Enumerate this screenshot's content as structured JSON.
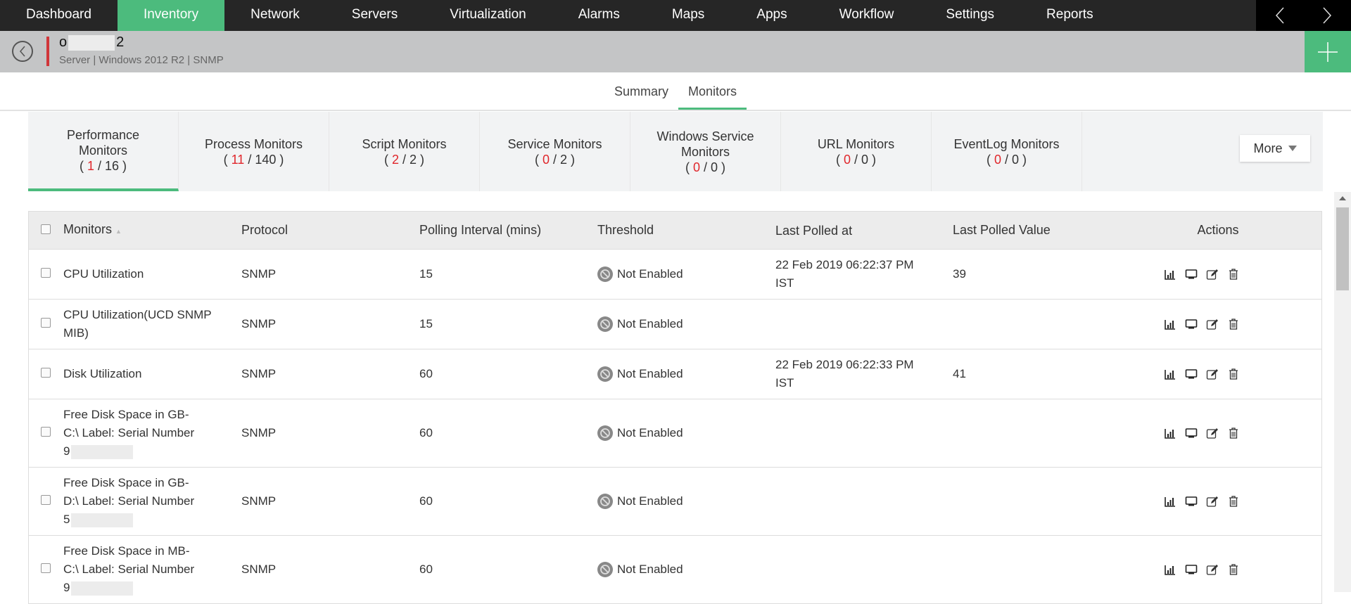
{
  "nav": {
    "items": [
      "Dashboard",
      "Inventory",
      "Network",
      "Servers",
      "Virtualization",
      "Alarms",
      "Maps",
      "Apps",
      "Workflow",
      "Settings",
      "Reports"
    ],
    "active": "Inventory"
  },
  "device": {
    "name_start": "o",
    "name_end": "2",
    "subtitle": "Server | Windows 2012 R2  | SNMP"
  },
  "subtabs": [
    "Summary",
    "Monitors"
  ],
  "monitor_tabs": [
    {
      "label": "Performance Monitors",
      "active": "1",
      "total": "16"
    },
    {
      "label": "Process Monitors",
      "active": "11",
      "total": "140"
    },
    {
      "label": "Script Monitors",
      "active": "2",
      "total": "2"
    },
    {
      "label": "Service Monitors",
      "active": "0",
      "total": "2"
    },
    {
      "label": "Windows Service Monitors",
      "active": "0",
      "total": "0"
    },
    {
      "label": "URL Monitors",
      "active": "0",
      "total": "0"
    },
    {
      "label": "EventLog Monitors",
      "active": "0",
      "total": "0"
    }
  ],
  "more_label": "More",
  "table": {
    "headers": [
      "Monitors",
      "Protocol",
      "Polling Interval (mins)",
      "Threshold",
      "Last Polled at",
      "Last Polled Value",
      "Actions"
    ],
    "rows": [
      {
        "monitor": "CPU Utilization",
        "protocol": "SNMP",
        "interval": "15",
        "threshold": "Not Enabled",
        "polled_at": "22 Feb 2019 06:22:37 PM IST",
        "value": "39"
      },
      {
        "monitor": "CPU Utilization(UCD SNMP MIB)",
        "protocol": "SNMP",
        "interval": "15",
        "threshold": "Not Enabled",
        "polled_at": "",
        "value": ""
      },
      {
        "monitor": "Disk Utilization",
        "protocol": "SNMP",
        "interval": "60",
        "threshold": "Not Enabled",
        "polled_at": "22 Feb 2019 06:22:33 PM IST",
        "value": "41"
      },
      {
        "monitor": "Free Disk Space in GB-C:\\ Label: Serial Number",
        "suffix": "9",
        "protocol": "SNMP",
        "interval": "60",
        "threshold": "Not Enabled",
        "polled_at": "",
        "value": ""
      },
      {
        "monitor": "Free Disk Space in GB-D:\\ Label: Serial Number",
        "suffix": "5",
        "protocol": "SNMP",
        "interval": "60",
        "threshold": "Not Enabled",
        "polled_at": "",
        "value": ""
      },
      {
        "monitor": "Free Disk Space in MB-C:\\ Label: Serial Number",
        "suffix": "9",
        "protocol": "SNMP",
        "interval": "60",
        "threshold": "Not Enabled",
        "polled_at": "",
        "value": ""
      }
    ]
  },
  "colors": {
    "accent": "#4cbb7d",
    "alert": "#e0262b",
    "nav_bg": "#262626",
    "header_bg": "#c4c5c6"
  }
}
